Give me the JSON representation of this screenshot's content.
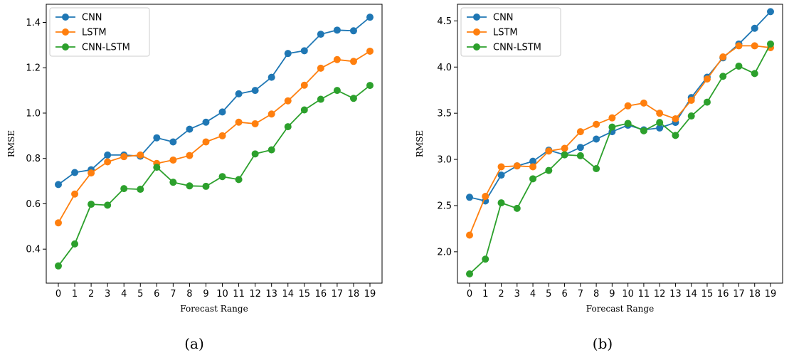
{
  "chart_data": [
    {
      "type": "line",
      "caption": "(a)",
      "xlabel": "Forecast Range",
      "ylabel": "RMSE",
      "x": [
        0,
        1,
        2,
        3,
        4,
        5,
        6,
        7,
        8,
        9,
        10,
        11,
        12,
        13,
        14,
        15,
        16,
        17,
        18,
        19
      ],
      "ylim": [
        0.25,
        1.48
      ],
      "yticks": [
        0.4,
        0.6,
        0.8,
        1.0,
        1.2,
        1.4
      ],
      "ytick_labels": [
        "0.4",
        "0.6",
        "0.8",
        "1.0",
        "1.2",
        "1.4"
      ],
      "legend": "top-left",
      "grid": false,
      "series": [
        {
          "name": "CNN",
          "color": "#1f77b4",
          "values": [
            0.685,
            0.738,
            0.75,
            0.815,
            0.815,
            0.81,
            0.891,
            0.873,
            0.929,
            0.96,
            1.005,
            1.085,
            1.1,
            1.158,
            1.263,
            1.275,
            1.348,
            1.366,
            1.363,
            1.423
          ]
        },
        {
          "name": "LSTM",
          "color": "#ff7f0e",
          "values": [
            0.516,
            0.643,
            0.736,
            0.785,
            0.808,
            0.815,
            0.778,
            0.793,
            0.813,
            0.873,
            0.9,
            0.96,
            0.953,
            0.996,
            1.054,
            1.123,
            1.198,
            1.236,
            1.228,
            1.273
          ]
        },
        {
          "name": "CNN-LSTM",
          "color": "#2ca02c",
          "values": [
            0.326,
            0.423,
            0.598,
            0.594,
            0.667,
            0.664,
            0.761,
            0.695,
            0.679,
            0.677,
            0.72,
            0.707,
            0.82,
            0.838,
            0.94,
            1.014,
            1.061,
            1.1,
            1.065,
            1.122
          ]
        }
      ]
    },
    {
      "type": "line",
      "caption": "(b)",
      "xlabel": "Forecast Range",
      "ylabel": "RMSE",
      "x": [
        0,
        1,
        2,
        3,
        4,
        5,
        6,
        7,
        8,
        9,
        10,
        11,
        12,
        13,
        14,
        15,
        16,
        17,
        18,
        19
      ],
      "ylim": [
        1.66,
        4.68
      ],
      "yticks": [
        2.0,
        2.5,
        3.0,
        3.5,
        4.0,
        4.5
      ],
      "ytick_labels": [
        "2.0",
        "2.5",
        "3.0",
        "3.5",
        "4.0",
        "4.5"
      ],
      "legend": "top-left",
      "grid": false,
      "series": [
        {
          "name": "CNN",
          "color": "#1f77b4",
          "values": [
            2.59,
            2.55,
            2.83,
            2.93,
            2.98,
            3.1,
            3.05,
            3.13,
            3.22,
            3.3,
            3.37,
            3.32,
            3.34,
            3.4,
            3.67,
            3.89,
            4.1,
            4.25,
            4.42,
            4.6
          ]
        },
        {
          "name": "LSTM",
          "color": "#ff7f0e",
          "values": [
            2.18,
            2.6,
            2.92,
            2.93,
            2.92,
            3.09,
            3.12,
            3.3,
            3.38,
            3.45,
            3.58,
            3.61,
            3.5,
            3.44,
            3.64,
            3.87,
            4.11,
            4.23,
            4.23,
            4.21
          ]
        },
        {
          "name": "CNN-LSTM",
          "color": "#2ca02c",
          "values": [
            1.76,
            1.92,
            2.53,
            2.47,
            2.79,
            2.88,
            3.05,
            3.04,
            2.9,
            3.35,
            3.39,
            3.31,
            3.4,
            3.26,
            3.47,
            3.62,
            3.9,
            4.01,
            3.93,
            4.25
          ]
        }
      ]
    }
  ]
}
